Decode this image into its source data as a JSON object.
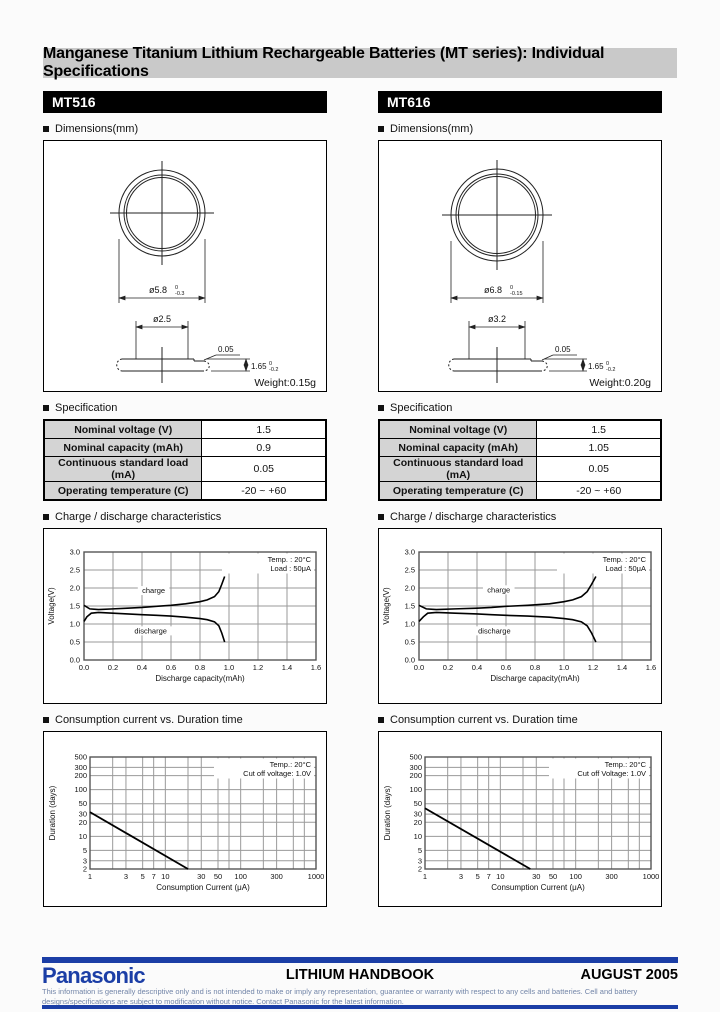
{
  "page": {
    "title": "Manganese Titanium Lithium Rechargeable Batteries (MT series): Individual Specifications"
  },
  "section_labels": {
    "dimensions": "Dimensions(mm)",
    "specification": "Specification",
    "charge": "Charge / discharge characteristics",
    "consumption": "Consumption current vs. Duration time"
  },
  "products": [
    {
      "model": "MT516",
      "weight": "Weight:0.15g",
      "dims": {
        "outer_dia": "ø5.8",
        "outer_tol_top": "0",
        "outer_tol_bot": "-0.3",
        "inner_dia": "ø2.5",
        "step": "0.05",
        "height": "1.65",
        "height_tol_top": "0",
        "height_tol_bot": "-0.2"
      },
      "spec_rows": [
        [
          "Nominal voltage (V)",
          "1.5"
        ],
        [
          "Nominal capacity (mAh)",
          "0.9"
        ],
        [
          "Continuous standard load (mA)",
          "0.05"
        ],
        [
          "Operating temperature (C)",
          "-20 ~ +60"
        ]
      ]
    },
    {
      "model": "MT616",
      "weight": "Weight:0.20g",
      "dims": {
        "outer_dia": "ø6.8",
        "outer_tol_top": "0",
        "outer_tol_bot": "-0.15",
        "inner_dia": "ø3.2",
        "step": "0.05",
        "height": "1.65",
        "height_tol_top": "0",
        "height_tol_bot": "-0.2"
      },
      "spec_rows": [
        [
          "Nominal voltage (V)",
          "1.5"
        ],
        [
          "Nominal capacity (mAh)",
          "1.05"
        ],
        [
          "Continuous standard load (mA)",
          "0.05"
        ],
        [
          "Operating temperature (C)",
          "-20 ~ +60"
        ]
      ]
    }
  ],
  "chart_data": [
    {
      "kind": "linear",
      "type": "line",
      "title": "MT516 charge / discharge characteristics",
      "xlabel": "Discharge capacity(mAh)",
      "ylabel": "Voltage(V)",
      "xlim": [
        0,
        1.6
      ],
      "ylim": [
        0,
        3
      ],
      "xtick_step": 0.2,
      "ytick_step": 0.5,
      "grid": true,
      "annotations": [
        "Temp. : 20°C",
        "Load : 50μA"
      ],
      "series": [
        {
          "name": "charge",
          "label_at": [
            0.48,
            1.86
          ],
          "points": [
            [
              0,
              1.52
            ],
            [
              0.04,
              1.42
            ],
            [
              0.1,
              1.4
            ],
            [
              0.2,
              1.42
            ],
            [
              0.3,
              1.44
            ],
            [
              0.4,
              1.46
            ],
            [
              0.5,
              1.49
            ],
            [
              0.6,
              1.52
            ],
            [
              0.7,
              1.56
            ],
            [
              0.8,
              1.62
            ],
            [
              0.85,
              1.67
            ],
            [
              0.9,
              1.76
            ],
            [
              0.93,
              1.9
            ],
            [
              0.95,
              2.1
            ],
            [
              0.97,
              2.32
            ]
          ]
        },
        {
          "name": "discharge",
          "label_at": [
            0.46,
            0.74
          ],
          "points": [
            [
              0,
              1.07
            ],
            [
              0.02,
              1.2
            ],
            [
              0.05,
              1.3
            ],
            [
              0.1,
              1.32
            ],
            [
              0.2,
              1.3
            ],
            [
              0.3,
              1.28
            ],
            [
              0.4,
              1.26
            ],
            [
              0.5,
              1.24
            ],
            [
              0.6,
              1.22
            ],
            [
              0.7,
              1.19
            ],
            [
              0.8,
              1.15
            ],
            [
              0.85,
              1.12
            ],
            [
              0.9,
              1.06
            ],
            [
              0.93,
              0.95
            ],
            [
              0.95,
              0.75
            ],
            [
              0.97,
              0.5
            ]
          ]
        }
      ]
    },
    {
      "kind": "linear",
      "type": "line",
      "title": "MT616 charge / discharge characteristics",
      "xlabel": "Discharge capacity(mAh)",
      "ylabel": "Voltage(V)",
      "xlim": [
        0,
        1.6
      ],
      "ylim": [
        0,
        3
      ],
      "xtick_step": 0.2,
      "ytick_step": 0.5,
      "grid": true,
      "annotations": [
        "Temp. : 20°C",
        "Load : 50μA"
      ],
      "series": [
        {
          "name": "charge",
          "label_at": [
            0.55,
            1.88
          ],
          "points": [
            [
              0,
              1.52
            ],
            [
              0.05,
              1.42
            ],
            [
              0.12,
              1.4
            ],
            [
              0.25,
              1.42
            ],
            [
              0.4,
              1.44
            ],
            [
              0.5,
              1.46
            ],
            [
              0.6,
              1.49
            ],
            [
              0.75,
              1.52
            ],
            [
              0.9,
              1.56
            ],
            [
              1.0,
              1.62
            ],
            [
              1.06,
              1.67
            ],
            [
              1.12,
              1.76
            ],
            [
              1.16,
              1.9
            ],
            [
              1.19,
              2.1
            ],
            [
              1.22,
              2.32
            ]
          ]
        },
        {
          "name": "discharge",
          "label_at": [
            0.52,
            0.74
          ],
          "points": [
            [
              0,
              1.07
            ],
            [
              0.03,
              1.2
            ],
            [
              0.06,
              1.3
            ],
            [
              0.12,
              1.32
            ],
            [
              0.25,
              1.3
            ],
            [
              0.4,
              1.28
            ],
            [
              0.5,
              1.26
            ],
            [
              0.6,
              1.24
            ],
            [
              0.75,
              1.22
            ],
            [
              0.9,
              1.19
            ],
            [
              1.0,
              1.15
            ],
            [
              1.06,
              1.12
            ],
            [
              1.12,
              1.06
            ],
            [
              1.16,
              0.95
            ],
            [
              1.19,
              0.75
            ],
            [
              1.22,
              0.5
            ]
          ]
        }
      ]
    },
    {
      "kind": "loglog",
      "type": "line",
      "title": "MT516 consumption current vs. duration time",
      "xlabel": "Consumption Current (μA)",
      "ylabel": "Duration (days)",
      "xlim": [
        1,
        1000
      ],
      "ylim": [
        2,
        500
      ],
      "xticks": [
        1,
        3,
        5,
        7,
        10,
        30,
        50,
        100,
        300,
        1000
      ],
      "xgrid_minor": [
        2,
        20,
        70,
        200,
        500,
        700
      ],
      "yticks": [
        2,
        3,
        5,
        10,
        20,
        30,
        50,
        100,
        200,
        300,
        500
      ],
      "grid": true,
      "annotations": [
        "Temp.: 20°C",
        "Cut off voltage: 1.0V"
      ],
      "series": [
        {
          "name": "",
          "points": [
            [
              1,
              33
            ],
            [
              20,
              2
            ]
          ]
        }
      ]
    },
    {
      "kind": "loglog",
      "type": "line",
      "title": "MT616 consumption current vs. duration time",
      "xlabel": "Consumption Current (μA)",
      "ylabel": "Duration (days)",
      "xlim": [
        1,
        1000
      ],
      "ylim": [
        2,
        500
      ],
      "xticks": [
        1,
        3,
        5,
        7,
        10,
        30,
        50,
        100,
        300,
        1000
      ],
      "xgrid_minor": [
        2,
        20,
        70,
        200,
        500,
        700
      ],
      "yticks": [
        2,
        3,
        5,
        10,
        20,
        30,
        50,
        100,
        200,
        300,
        500
      ],
      "grid": true,
      "annotations": [
        "Temp.: 20°C",
        "Cut off Voltage: 1.0V"
      ],
      "series": [
        {
          "name": "",
          "points": [
            [
              1,
              40
            ],
            [
              25,
              2
            ]
          ]
        }
      ]
    }
  ],
  "footer": {
    "logo": "Panasonic",
    "handbook": "LITHIUM HANDBOOK",
    "date": "AUGUST 2005",
    "disclaimer": "This information is generally descriptive only and is not intended to make or imply any representation, guarantee or warranty with respect to any cells and batteries. Cell and battery designs/specifications are subject to modification without notice. Contact Panasonic for the latest information."
  }
}
